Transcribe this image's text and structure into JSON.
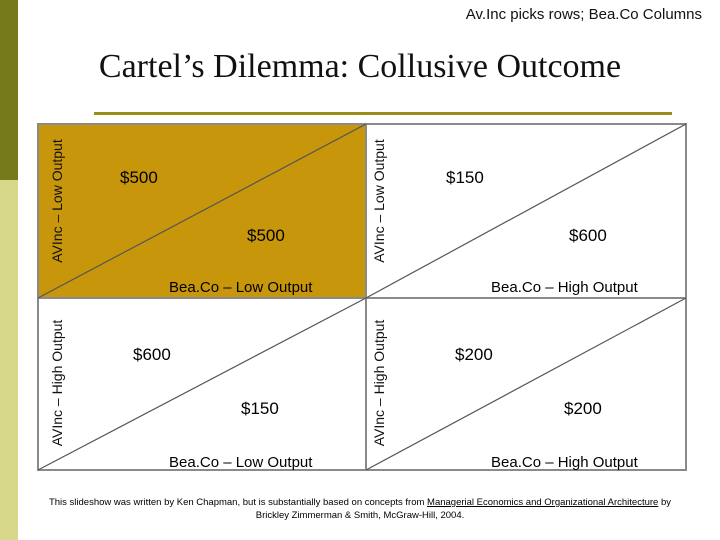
{
  "header": {
    "note": "Av.Inc picks rows; Bea.Co Columns"
  },
  "title": "Cartel’s Dilemma: Collusive Outcome",
  "colors": {
    "highlight": "#c8960a",
    "bar_dark": "#777a1a",
    "bar_light": "#d8d88a",
    "rule": "#9a8d18"
  },
  "matrix": {
    "cells": [
      {
        "row_label": "AVInc – Low Output",
        "col_label": "Bea.Co – Low Output",
        "avinc_payoff": "$500",
        "beaco_payoff": "$500",
        "highlighted": true
      },
      {
        "row_label": "AVInc – Low Output",
        "col_label": "Bea.Co – High Output",
        "avinc_payoff": "$150",
        "beaco_payoff": "$600",
        "highlighted": false
      },
      {
        "row_label": "AVInc – High Output",
        "col_label": "Bea.Co – Low Output",
        "avinc_payoff": "$600",
        "beaco_payoff": "$150",
        "highlighted": false
      },
      {
        "row_label": "AVInc – High Output",
        "col_label": "Bea.Co – High Output",
        "avinc_payoff": "$200",
        "beaco_payoff": "$200",
        "highlighted": false
      }
    ]
  },
  "footer": {
    "line1": "This slideshow was written by Ken Chapman, but is substantially based on concepts from",
    "ref1": "Managerial Economics and Organizational Architecture",
    "line2": "by Brickley Zimmerman & Smith, McGraw-Hill, 2004."
  }
}
